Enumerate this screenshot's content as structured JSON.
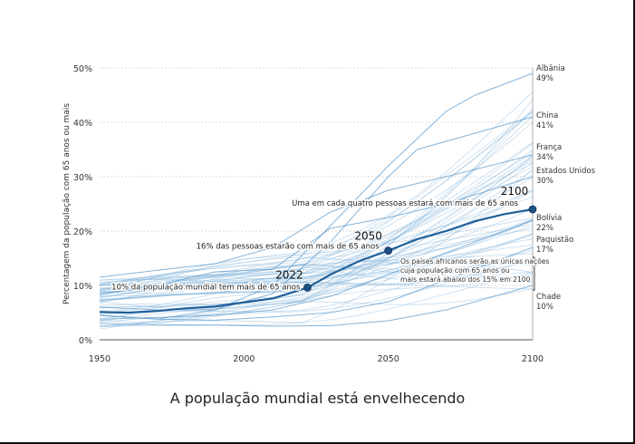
{
  "caption": "A população mundial está envelhecendo",
  "chart_data": {
    "type": "line",
    "ylabel": "Percentagem da população com 65 anos ou mais",
    "xlim": [
      1950,
      2100
    ],
    "ylim": [
      0,
      50
    ],
    "x_ticks": [
      1950,
      2000,
      2050,
      2100
    ],
    "y_ticks": [
      "0%",
      "10%",
      "20%",
      "30%",
      "40%",
      "50%"
    ],
    "grid": "horizontal dashed",
    "colors": {
      "highlight": "#1f5f9a",
      "background_lines": "#7fb1d9",
      "marker": "#1d5186"
    },
    "world": {
      "x": [
        1950,
        1960,
        1970,
        1980,
        1990,
        2000,
        2010,
        2022,
        2030,
        2040,
        2050,
        2060,
        2070,
        2080,
        2090,
        2100
      ],
      "y": [
        5.1,
        5.0,
        5.3,
        5.8,
        6.1,
        6.9,
        7.6,
        9.6,
        12.0,
        14.5,
        16.4,
        18.5,
        20.0,
        21.8,
        23.1,
        24.0
      ]
    },
    "milestones": [
      {
        "year": "2022",
        "value": 9.6,
        "label": "10% da população mundial tem mais de 65 anos"
      },
      {
        "year": "2050",
        "value": 16.4,
        "label": "16% das pessoas estarão com mais de 65 anos"
      },
      {
        "year": "2100",
        "value": 24.0,
        "label": "Uma em cada quatro pessoas estará com mais de 65 anos"
      }
    ],
    "countries": [
      {
        "name": "Albânia",
        "value": "49%",
        "x": [
          1950,
          1970,
          1990,
          2010,
          2030,
          2050,
          2070,
          2080,
          2100
        ],
        "y": [
          6,
          5.5,
          5.5,
          10,
          21,
          32,
          42,
          45,
          49
        ]
      },
      {
        "name": "China",
        "value": "41%",
        "x": [
          1950,
          1970,
          1990,
          2010,
          2030,
          2050,
          2060,
          2080,
          2100
        ],
        "y": [
          4.5,
          3.8,
          5.5,
          8.5,
          18,
          30,
          35,
          38,
          41
        ]
      },
      {
        "name": "França",
        "value": "34%",
        "x": [
          1950,
          1970,
          1990,
          2010,
          2030,
          2050,
          2070,
          2100
        ],
        "y": [
          11.5,
          12.8,
          14,
          17,
          23.5,
          27.5,
          30,
          34
        ]
      },
      {
        "name": "Estados Unidos",
        "value": "30%",
        "x": [
          1950,
          1970,
          1990,
          2010,
          2030,
          2050,
          2070,
          2100
        ],
        "y": [
          8.3,
          10,
          12.5,
          13,
          20.5,
          22.5,
          25,
          30
        ]
      },
      {
        "name": "Bolívia",
        "value": "22%",
        "x": [
          1950,
          1970,
          1990,
          2010,
          2030,
          2050,
          2070,
          2100
        ],
        "y": [
          3.8,
          4.1,
          4.5,
          5.5,
          8,
          12,
          16,
          22
        ]
      },
      {
        "name": "Paquistão",
        "value": "17%",
        "x": [
          1950,
          1970,
          1990,
          2010,
          2030,
          2050,
          2070,
          2100
        ],
        "y": [
          4.5,
          3.8,
          3.6,
          4.2,
          5,
          7,
          11,
          17
        ]
      },
      {
        "name": "Chade",
        "value": "10%",
        "x": [
          1950,
          1970,
          1990,
          2010,
          2030,
          2050,
          2070,
          2100
        ],
        "y": [
          3,
          2.8,
          2.7,
          2.5,
          2.6,
          3.5,
          5.5,
          10
        ]
      }
    ],
    "bracket_note": "Os países africanos serão as únicas nações cuja população com 65 anos ou mais estará abaixo dos 15% em 2100",
    "bracket_range": [
      10,
      15
    ]
  }
}
